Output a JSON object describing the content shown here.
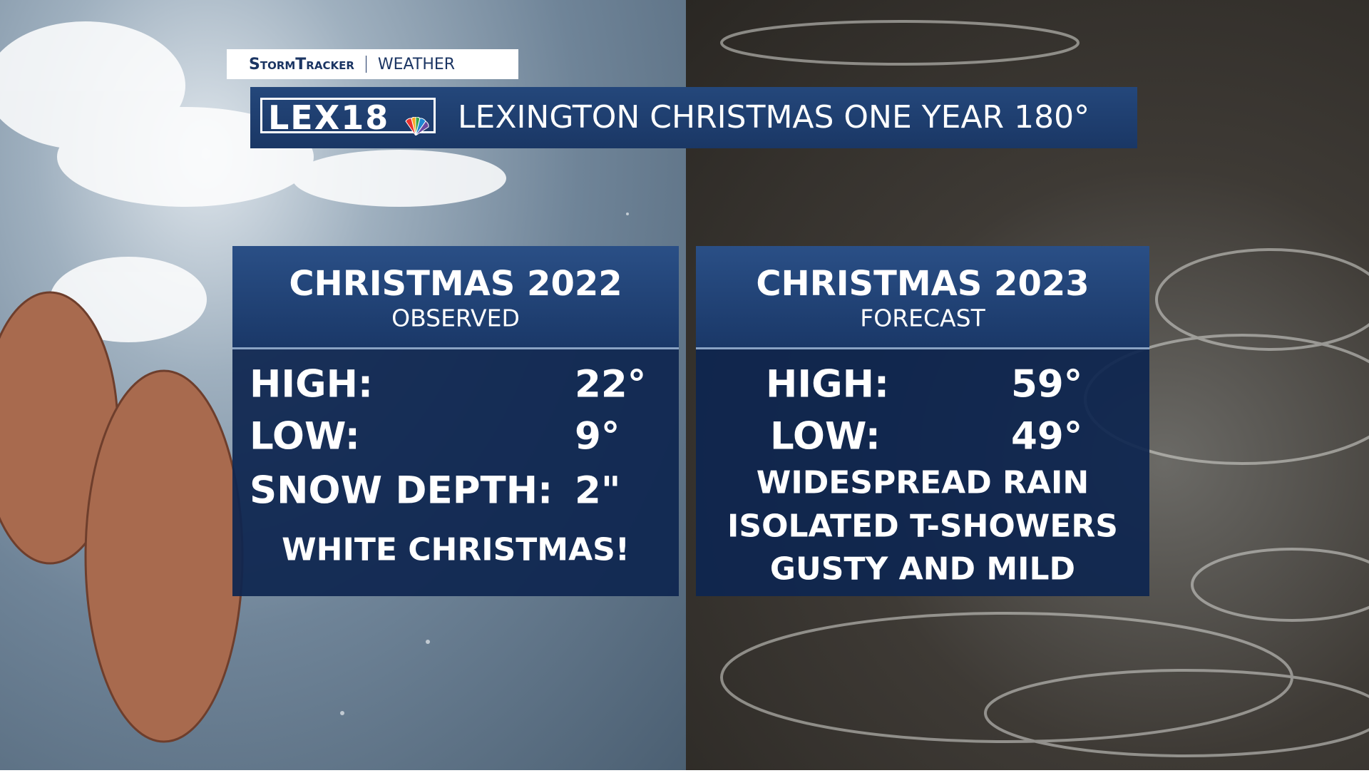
{
  "brand": {
    "name": "StormTracker",
    "section": "WEATHER"
  },
  "logo": "LEX18",
  "title": "LEXINGTON CHRISTMAS ONE YEAR 180°",
  "panels": [
    {
      "title": "CHRISTMAS 2022",
      "subtitle": "OBSERVED",
      "rows": [
        [
          "HIGH:",
          "22°"
        ],
        [
          "LOW:",
          "9°"
        ],
        [
          "SNOW DEPTH:",
          "2\""
        ]
      ],
      "notes": [
        "WHITE CHRISTMAS!"
      ]
    },
    {
      "title": "CHRISTMAS 2023",
      "subtitle": "FORECAST",
      "rows": [
        [
          "HIGH:",
          "59°"
        ],
        [
          "LOW:",
          "49°"
        ]
      ],
      "notes": [
        "WIDESPREAD RAIN",
        "ISOLATED T-SHOWERS",
        "GUSTY AND MILD"
      ]
    }
  ]
}
